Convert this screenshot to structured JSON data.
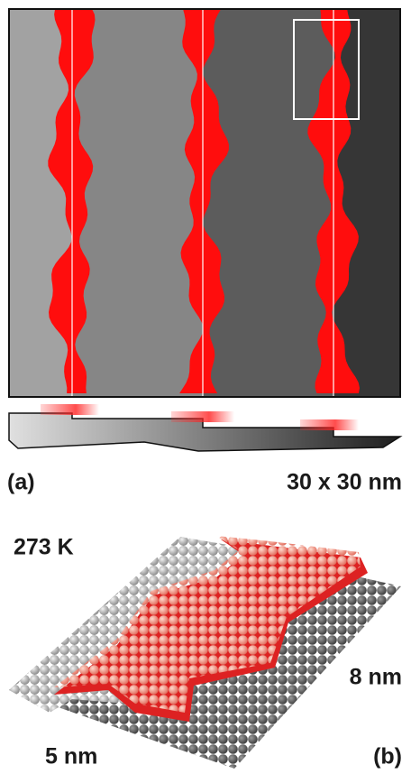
{
  "panel_a": {
    "label": "(a)",
    "scale": "30 x 30 nm"
  },
  "panel_b": {
    "label": "(b)",
    "temperature": "273 K",
    "width": "8 nm",
    "length": "5 nm"
  }
}
